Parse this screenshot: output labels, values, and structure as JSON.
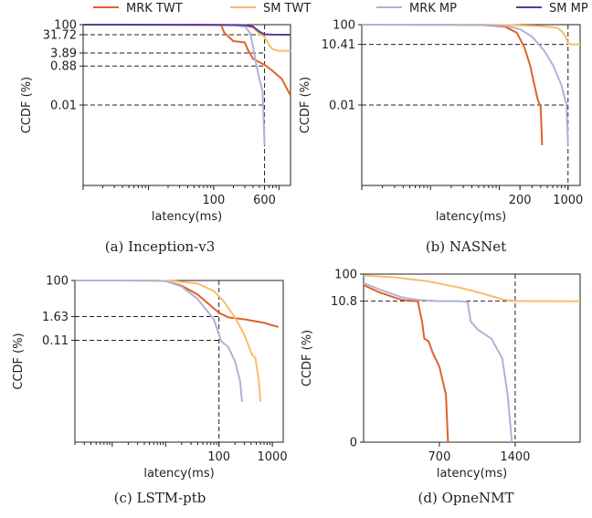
{
  "colors": {
    "MRK TWT": "#e0622a",
    "SM TWT": "#f7bd6b",
    "MRK MP": "#b3b1d6",
    "SM MP": "#5b3a96"
  },
  "chart_data": [
    {
      "type": "line",
      "caption": "(a) Inception-v3",
      "xlabel": "latency(ms)",
      "ylabel": "CCDF (%)",
      "x_scale": "log",
      "xlim": [
        1,
        1500
      ],
      "y_ticks": [
        "100",
        "31.72",
        "3.89",
        "0.88",
        "0.01"
      ],
      "x_ticks": [
        "100",
        "600"
      ],
      "ref_x": 600,
      "series": [
        {
          "name": "MRK TWT",
          "points": [
            [
              1,
              100
            ],
            [
              30,
              99
            ],
            [
              100,
              97
            ],
            [
              130,
              94
            ],
            [
              145,
              40
            ],
            [
              200,
              15
            ],
            [
              250,
              14
            ],
            [
              300,
              13
            ],
            [
              330,
              6
            ],
            [
              400,
              2
            ],
            [
              600,
              1
            ],
            [
              800,
              0.5
            ],
            [
              1100,
              0.2
            ],
            [
              1500,
              0.03
            ]
          ]
        },
        {
          "name": "SM TWT",
          "points": [
            [
              1,
              100
            ],
            [
              50,
              99
            ],
            [
              150,
              96
            ],
            [
              300,
              90
            ],
            [
              400,
              70
            ],
            [
              500,
              35
            ],
            [
              600,
              25
            ],
            [
              700,
              10
            ],
            [
              800,
              6
            ],
            [
              1000,
              5
            ],
            [
              1500,
              5
            ]
          ]
        },
        {
          "name": "MRK MP",
          "points": [
            [
              1,
              100
            ],
            [
              30,
              99
            ],
            [
              100,
              97
            ],
            [
              200,
              94
            ],
            [
              300,
              80
            ],
            [
              360,
              40
            ],
            [
              400,
              8
            ],
            [
              450,
              1
            ],
            [
              500,
              0.2
            ],
            [
              560,
              0.05
            ],
            [
              600,
              0.0001
            ]
          ]
        },
        {
          "name": "SM MP",
          "points": [
            [
              1,
              100
            ],
            [
              50,
              99
            ],
            [
              150,
              98
            ],
            [
              300,
              95
            ],
            [
              400,
              80
            ],
            [
              500,
              45
            ],
            [
              600,
              33
            ],
            [
              800,
              32
            ],
            [
              1500,
              31.5
            ]
          ]
        }
      ]
    },
    {
      "type": "line",
      "caption": "(b) NASNet",
      "xlabel": "latency(ms)",
      "ylabel": "CCDF (%)",
      "x_scale": "log",
      "xlim": [
        1,
        1500
      ],
      "y_ticks": [
        "100",
        "10.41",
        "0.01"
      ],
      "x_ticks": [
        "200",
        "1000"
      ],
      "ref_x": 1000,
      "series": [
        {
          "name": "MRK TWT",
          "points": [
            [
              1,
              100
            ],
            [
              20,
              99
            ],
            [
              60,
              95
            ],
            [
              120,
              80
            ],
            [
              180,
              40
            ],
            [
              230,
              8
            ],
            [
              280,
              1
            ],
            [
              310,
              0.2
            ],
            [
              360,
              0.02
            ],
            [
              400,
              0.008
            ],
            [
              420,
              0.0001
            ]
          ]
        },
        {
          "name": "SM TWT",
          "points": [
            [
              1,
              100
            ],
            [
              40,
              99
            ],
            [
              150,
              95
            ],
            [
              400,
              85
            ],
            [
              700,
              70
            ],
            [
              850,
              40
            ],
            [
              950,
              20
            ],
            [
              1000,
              12
            ],
            [
              1100,
              10.5
            ],
            [
              1500,
              10.4
            ]
          ]
        },
        {
          "name": "MRK MP",
          "points": [
            [
              1,
              100
            ],
            [
              20,
              99
            ],
            [
              60,
              96
            ],
            [
              120,
              88
            ],
            [
              200,
              60
            ],
            [
              300,
              25
            ],
            [
              450,
              5
            ],
            [
              600,
              1
            ],
            [
              800,
              0.1
            ],
            [
              950,
              0.01
            ],
            [
              1000,
              0.0001
            ]
          ]
        }
      ]
    },
    {
      "type": "line",
      "caption": "(c) LSTM-ptb",
      "xlabel": "latency(ms)",
      "ylabel": "CCDF (%)",
      "x_scale": "log",
      "xlim": [
        0.2,
        1600
      ],
      "y_ticks": [
        "100",
        "1.63",
        "0.11"
      ],
      "x_ticks": [
        "100",
        "1000"
      ],
      "ref_x": 100,
      "series": [
        {
          "name": "MRK TWT",
          "points": [
            [
              0.2,
              100
            ],
            [
              5,
              99
            ],
            [
              10,
              94
            ],
            [
              20,
              55
            ],
            [
              40,
              20
            ],
            [
              60,
              8
            ],
            [
              100,
              2.5
            ],
            [
              150,
              1.5
            ],
            [
              300,
              1.2
            ],
            [
              700,
              0.8
            ],
            [
              1300,
              0.5
            ]
          ]
        },
        {
          "name": "SM TWT",
          "points": [
            [
              0.2,
              100
            ],
            [
              5,
              99
            ],
            [
              15,
              93
            ],
            [
              40,
              70
            ],
            [
              80,
              30
            ],
            [
              120,
              10
            ],
            [
              200,
              1.5
            ],
            [
              300,
              0.2
            ],
            [
              420,
              0.02
            ],
            [
              480,
              0.015
            ],
            [
              560,
              0.001
            ],
            [
              600,
              0.0001
            ]
          ]
        },
        {
          "name": "MRK MP",
          "points": [
            [
              0.2,
              100
            ],
            [
              5,
              99
            ],
            [
              10,
              94
            ],
            [
              20,
              50
            ],
            [
              40,
              12
            ],
            [
              80,
              1.2
            ],
            [
              110,
              0.1
            ],
            [
              150,
              0.05
            ],
            [
              200,
              0.01
            ],
            [
              250,
              0.001
            ],
            [
              270,
              0.0001
            ]
          ]
        }
      ]
    },
    {
      "type": "line",
      "caption": "(d) OpneNMT",
      "xlabel": "latency(ms)",
      "ylabel": "CCDF (%)",
      "x_scale": "linear",
      "xlim": [
        0,
        2000
      ],
      "y_ticks": [
        "100",
        "10.8",
        "0"
      ],
      "x_ticks": [
        "700",
        "1400"
      ],
      "ref_x": 1400,
      "series": [
        {
          "name": "MRK TWT",
          "points": [
            [
              0,
              40
            ],
            [
              150,
              22
            ],
            [
              350,
              12
            ],
            [
              450,
              11
            ],
            [
              500,
              10.8
            ],
            [
              540,
              2
            ],
            [
              560,
              0.5
            ],
            [
              600,
              0.4
            ],
            [
              640,
              0.15
            ],
            [
              700,
              0.05
            ],
            [
              760,
              0.005
            ],
            [
              780,
              0.0001
            ]
          ]
        },
        {
          "name": "SM TWT",
          "points": [
            [
              0,
              90
            ],
            [
              300,
              75
            ],
            [
              600,
              55
            ],
            [
              900,
              32
            ],
            [
              1100,
              20
            ],
            [
              1300,
              12
            ],
            [
              1400,
              11
            ],
            [
              1600,
              10.8
            ],
            [
              2000,
              10.7
            ]
          ]
        },
        {
          "name": "MRK MP",
          "points": [
            [
              0,
              48
            ],
            [
              150,
              28
            ],
            [
              350,
              15
            ],
            [
              500,
              12
            ],
            [
              700,
              10.8
            ],
            [
              900,
              10.8
            ],
            [
              960,
              10
            ],
            [
              990,
              2
            ],
            [
              1060,
              1
            ],
            [
              1180,
              0.5
            ],
            [
              1280,
              0.1
            ],
            [
              1330,
              0.005
            ],
            [
              1370,
              0.0001
            ]
          ]
        }
      ]
    }
  ]
}
